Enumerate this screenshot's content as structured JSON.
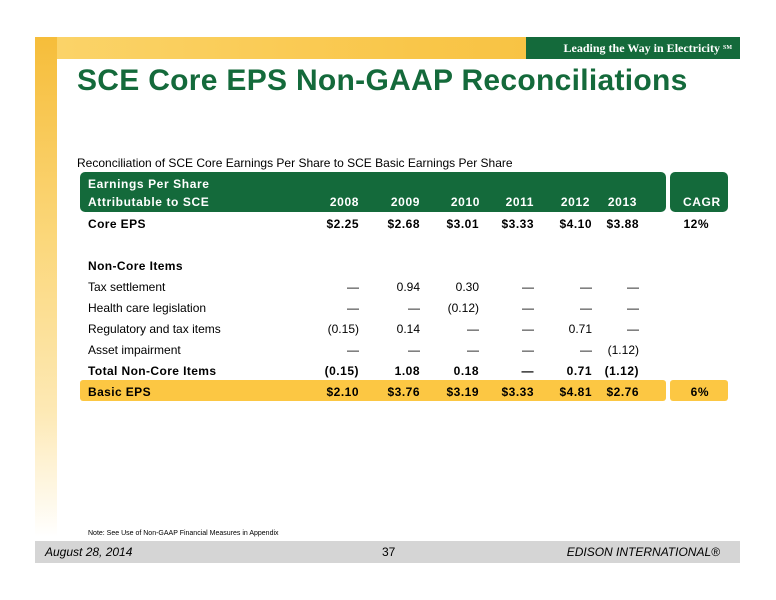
{
  "header": {
    "tagline": "Leading the Way in Electricity",
    "tagline_mark": "SM",
    "title": "SCE Core EPS Non-GAAP Reconciliations"
  },
  "subtitle": "Reconciliation of SCE Core Earnings Per Share to SCE Basic Earnings Per Share",
  "table": {
    "header_line1": "Earnings Per Share",
    "header_line2": "Attributable to SCE",
    "years": [
      "2008",
      "2009",
      "2010",
      "2011",
      "2012",
      "2013"
    ],
    "cagr_header": "CAGR",
    "core": {
      "label": "Core EPS",
      "values": [
        "$2.25",
        "$2.68",
        "$3.01",
        "$3.33",
        "$4.10",
        "$3.88"
      ],
      "cagr": "12%"
    },
    "noncore_heading": "Non-Core Items",
    "noncore_rows": [
      {
        "label": "Tax settlement",
        "values": [
          "—",
          "0.94",
          "0.30",
          "—",
          "—",
          "—"
        ]
      },
      {
        "label": "Health care legislation",
        "values": [
          "—",
          "—",
          "(0.12)",
          "—",
          "—",
          "—"
        ]
      },
      {
        "label": "Regulatory and tax items",
        "values": [
          "(0.15)",
          "0.14",
          "—",
          "—",
          "0.71",
          "—"
        ]
      },
      {
        "label": "Asset impairment",
        "values": [
          "—",
          "—",
          "—",
          "—",
          "—",
          "(1.12)"
        ]
      }
    ],
    "total": {
      "label": "Total Non-Core Items",
      "values": [
        "(0.15)",
        "1.08",
        "0.18",
        "—",
        "0.71",
        "(1.12)"
      ]
    },
    "basic": {
      "label": "Basic EPS",
      "values": [
        "$2.10",
        "$3.76",
        "$3.19",
        "$3.33",
        "$4.81",
        "$2.76"
      ],
      "cagr": "6%"
    }
  },
  "note": "Note: See Use of Non-GAAP Financial Measures in Appendix",
  "footer": {
    "date": "August 28, 2014",
    "page": "37",
    "company": "EDISON INTERNATIONAL®"
  },
  "colors": {
    "brand_green": "#146a3b",
    "accent_yellow": "#fcc743",
    "footer_gray": "#d5d5d5"
  }
}
